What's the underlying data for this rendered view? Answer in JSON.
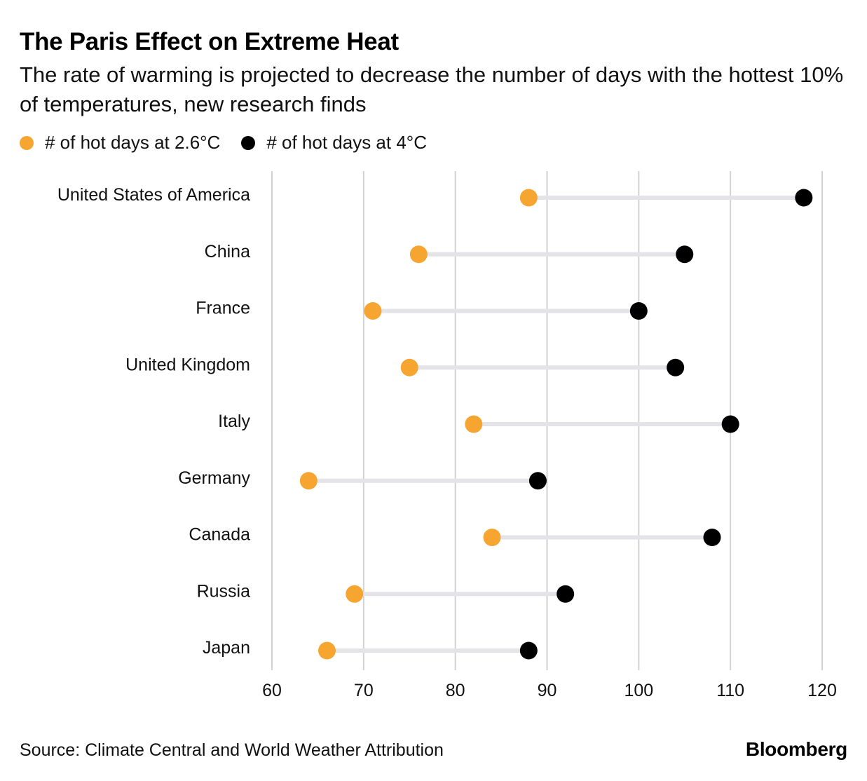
{
  "title": "The Paris Effect on Extreme Heat",
  "subtitle": "The rate of warming is projected to decrease the number of days with the hottest 10% of temperatures, new research finds",
  "legend": {
    "low_label": "# of hot days at 2.6°C",
    "high_label": "# of hot days at 4°C"
  },
  "colors": {
    "low": "#F7A531",
    "high": "#000000",
    "connector": "#E3E3E8",
    "grid": "#D2D2D2"
  },
  "footer": {
    "source": "Source: Climate Central and World Weather Attribution",
    "brand": "Bloomberg"
  },
  "chart_data": {
    "type": "dumbbell",
    "title": "The Paris Effect on Extreme Heat",
    "xlabel": "",
    "ylabel": "",
    "xlim": [
      60,
      120
    ],
    "xticks": [
      60,
      70,
      80,
      90,
      100,
      110,
      120
    ],
    "categories": [
      "United States of America",
      "China",
      "France",
      "United Kingdom",
      "Italy",
      "Germany",
      "Canada",
      "Russia",
      "Japan"
    ],
    "series": [
      {
        "name": "# of hot days at 2.6°C",
        "values": [
          88,
          76,
          71,
          75,
          82,
          64,
          84,
          69,
          66
        ]
      },
      {
        "name": "# of hot days at 4°C",
        "values": [
          118,
          105,
          100,
          104,
          110,
          89,
          108,
          92,
          88
        ]
      }
    ]
  }
}
